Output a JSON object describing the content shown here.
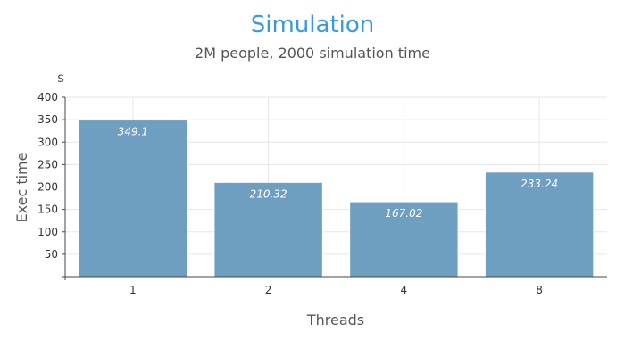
{
  "chart_data": {
    "type": "bar",
    "title": "Simulation",
    "subtitle": "2M people, 2000 simulation time",
    "xlabel": "Threads",
    "ylabel": "Exec time",
    "unit_label": "s",
    "categories": [
      "1",
      "2",
      "4",
      "8"
    ],
    "values": [
      349.1,
      210.32,
      167.02,
      233.24
    ],
    "data_labels": [
      "349.1",
      "210.32",
      "167.02",
      "233.24"
    ],
    "ylim": [
      0,
      400
    ],
    "yticks": [
      50,
      100,
      150,
      200,
      250,
      300,
      350,
      400
    ],
    "grid": true,
    "legend": "none",
    "colors": {
      "bar": "#6e9ec0",
      "title": "#3a9ad9"
    }
  }
}
